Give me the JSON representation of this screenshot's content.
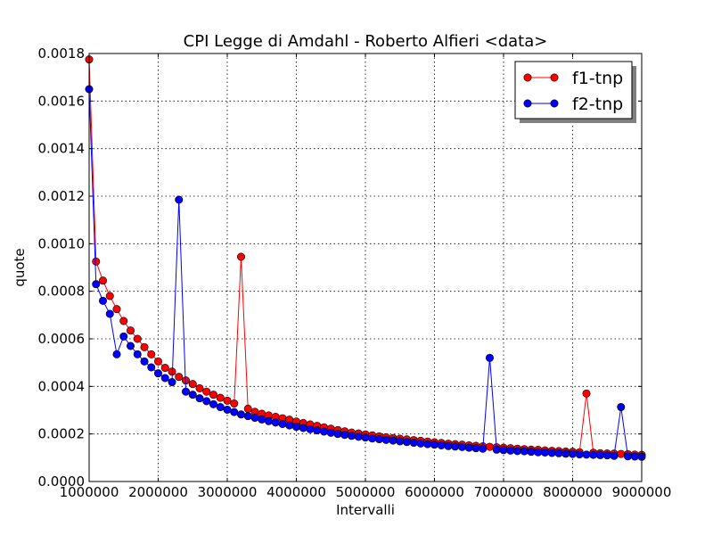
{
  "chart_data": {
    "type": "line",
    "title": "CPI  Legge di Amdahl  -   Roberto Alfieri  <data>",
    "xlabel": "Intervalli",
    "ylabel": "quote",
    "xlim": [
      1000000,
      9000000
    ],
    "ylim": [
      0,
      0.0018
    ],
    "xticks": [
      1000000,
      2000000,
      3000000,
      4000000,
      5000000,
      6000000,
      7000000,
      8000000,
      9000000
    ],
    "xtick_labels": [
      "1000000",
      "2000000",
      "3000000",
      "4000000",
      "5000000",
      "6000000",
      "7000000",
      "8000000",
      "9000000"
    ],
    "yticks": [
      0,
      0.0002,
      0.0004,
      0.0006,
      0.0008,
      0.001,
      0.0012,
      0.0014,
      0.0016,
      0.0018
    ],
    "ytick_labels": [
      "0.0000",
      "0.0002",
      "0.0004",
      "0.0006",
      "0.0008",
      "0.0010",
      "0.0012",
      "0.0014",
      "0.0016",
      "0.0018"
    ],
    "grid": true,
    "legend_position": "top-right",
    "x": [
      1000000,
      1100000,
      1200000,
      1300000,
      1400000,
      1500000,
      1600000,
      1700000,
      1800000,
      1900000,
      2000000,
      2100000,
      2200000,
      2300000,
      2400000,
      2500000,
      2600000,
      2700000,
      2800000,
      2900000,
      3000000,
      3100000,
      3200000,
      3300000,
      3400000,
      3500000,
      3600000,
      3700000,
      3800000,
      3900000,
      4000000,
      4100000,
      4200000,
      4300000,
      4400000,
      4500000,
      4600000,
      4700000,
      4800000,
      4900000,
      5000000,
      5100000,
      5200000,
      5300000,
      5400000,
      5500000,
      5600000,
      5700000,
      5800000,
      5900000,
      6000000,
      6100000,
      6200000,
      6300000,
      6400000,
      6500000,
      6600000,
      6700000,
      6800000,
      6900000,
      7000000,
      7100000,
      7200000,
      7300000,
      7400000,
      7500000,
      7600000,
      7700000,
      7800000,
      7900000,
      8000000,
      8100000,
      8200000,
      8300000,
      8400000,
      8500000,
      8600000,
      8700000,
      8800000,
      8900000,
      9000000
    ],
    "series": [
      {
        "name": "f1-tnp",
        "color": "#ff0000",
        "values": [
          0.001775,
          0.000925,
          0.000845,
          0.00078,
          0.000725,
          0.000675,
          0.000635,
          0.0006,
          0.000565,
          0.000535,
          0.000505,
          0.000478,
          0.000462,
          0.00044,
          0.000425,
          0.00041,
          0.000392,
          0.000378,
          0.000365,
          0.000352,
          0.00034,
          0.000328,
          0.000945,
          0.000306,
          0.000293,
          0.000285,
          0.000278,
          0.000272,
          0.000266,
          0.00026,
          0.000252,
          0.000246,
          0.00024,
          0.000234,
          0.000228,
          0.000222,
          0.000216,
          0.000211,
          0.000206,
          0.000202,
          0.000198,
          0.000194,
          0.00019,
          0.000186,
          0.000183,
          0.00018,
          0.000177,
          0.000174,
          0.000171,
          0.000168,
          0.000165,
          0.000162,
          0.000159,
          0.000157,
          0.000155,
          0.000152,
          0.00015,
          0.000148,
          0.000146,
          0.000144,
          0.000142,
          0.00014,
          0.000138,
          0.000136,
          0.000134,
          0.000133,
          0.000131,
          0.000129,
          0.000128,
          0.000126,
          0.000125,
          0.000123,
          0.00037,
          0.000121,
          0.000119,
          0.000118,
          0.000117,
          0.000116,
          0.000115,
          0.000113,
          0.000112
        ]
      },
      {
        "name": "f2-tnp",
        "color": "#0000ff",
        "values": [
          0.00165,
          0.00083,
          0.00076,
          0.000705,
          0.000535,
          0.00061,
          0.00057,
          0.000535,
          0.000505,
          0.00048,
          0.000455,
          0.000435,
          0.000418,
          0.001185,
          0.000378,
          0.000365,
          0.00035,
          0.000338,
          0.000325,
          0.000313,
          0.000302,
          0.000292,
          0.000282,
          0.000275,
          0.000268,
          0.000261,
          0.000254,
          0.000248,
          0.000242,
          0.000236,
          0.00023,
          0.000225,
          0.00022,
          0.000215,
          0.00021,
          0.000205,
          0.0002,
          0.000196,
          0.000192,
          0.000188,
          0.000185,
          0.000181,
          0.000178,
          0.000175,
          0.000172,
          0.000169,
          0.000166,
          0.000163,
          0.00016,
          0.000157,
          0.000155,
          0.000152,
          0.000149,
          0.000147,
          0.000145,
          0.000142,
          0.00014,
          0.000138,
          0.00052,
          0.000134,
          0.000132,
          0.00013,
          0.000128,
          0.000127,
          0.000125,
          0.000123,
          0.000122,
          0.00012,
          0.000119,
          0.000117,
          0.000116,
          0.000114,
          0.000113,
          0.000112,
          0.000111,
          0.00011,
          0.000108,
          0.000313,
          0.000106,
          0.000105,
          0.000104
        ]
      }
    ]
  }
}
